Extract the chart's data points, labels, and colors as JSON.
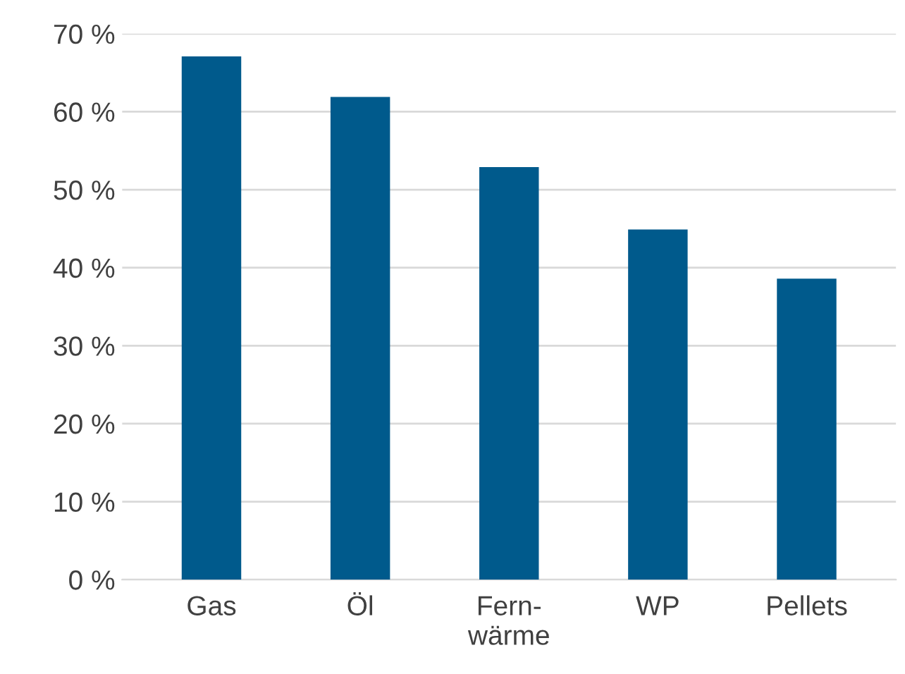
{
  "chart_data": {
    "type": "bar",
    "categories": [
      "Gas",
      "Öl",
      "Fern-\nwärme",
      "WP",
      "Pellets"
    ],
    "values": [
      67.1,
      61.9,
      52.9,
      44.9,
      38.6
    ],
    "color": "#005a8c",
    "ylim": [
      0,
      70
    ],
    "yticks": [
      {
        "value": 0,
        "label": "0 %"
      },
      {
        "value": 10,
        "label": "10 %"
      },
      {
        "value": 20,
        "label": "20 %"
      },
      {
        "value": 30,
        "label": "30 %"
      },
      {
        "value": 40,
        "label": "40 %"
      },
      {
        "value": 50,
        "label": "50 %"
      },
      {
        "value": 60,
        "label": "60 %"
      },
      {
        "value": 70,
        "label": "70 %"
      }
    ],
    "grid": "y"
  }
}
